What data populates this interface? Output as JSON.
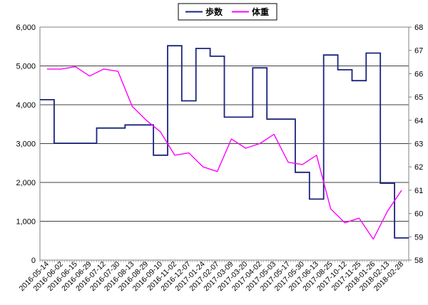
{
  "chart_data": {
    "type": "line",
    "x": [
      "2016-05-14",
      "2016-06-02",
      "2016-06-15",
      "2016-06-29",
      "2016-07-12",
      "2016-07-30",
      "2016-08-13",
      "2016-08-29",
      "2016-09-10",
      "2016-11-02",
      "2016-12-07",
      "2017-01-24",
      "2017-02-07",
      "2017-03-09",
      "2017-03-20",
      "2017-04-02",
      "2017-05-03",
      "2017-05-17",
      "2017-05-30",
      "2017-06-13",
      "2017-08-25",
      "2017-10-12",
      "2017-11-25",
      "2018-01-26",
      "2018-02-13",
      "2018-02-28"
    ],
    "x_tick_labels": [
      "2016-05-14",
      "2016-06-02",
      "2016-06-15",
      "2016-06-29",
      "2016-07-12",
      "2016-07-30",
      "2016-08-13",
      "2016-08-29",
      "2016-09-10",
      "2016-11-02",
      "2016-12-07",
      "2017-01-24",
      "2017-02-07",
      "2017-03-09",
      "2017-03-20",
      "2017-04-02",
      "2017-05-03",
      "2017-05-17",
      "2017-05-30",
      "2017-06-13",
      "2017-08-25",
      "2017-10-12",
      "2017-11-25",
      "2018-01-26",
      "2018-02-13",
      "2018-02-28"
    ],
    "y_left": {
      "ylim": [
        0,
        6000
      ],
      "ticks": [
        "0",
        "1,000",
        "2,000",
        "3,000",
        "4,000",
        "5,000",
        "6,000"
      ]
    },
    "y_right": {
      "ylim": [
        58,
        68
      ],
      "ticks": [
        "58",
        "59",
        "60",
        "61",
        "62",
        "63",
        "64",
        "65",
        "66",
        "67",
        "68"
      ]
    },
    "grid": "horizontal",
    "legend_position": "top-center",
    "series": [
      {
        "name": "歩数",
        "axis": "left",
        "color": "#1a237e",
        "values": [
          4130,
          3010,
          3010,
          3010,
          3400,
          3400,
          3480,
          3480,
          2700,
          5520,
          4100,
          5450,
          5250,
          3680,
          3680,
          4950,
          3630,
          3630,
          2260,
          1570,
          5280,
          4900,
          4620,
          5330,
          1980,
          570
        ]
      },
      {
        "name": "体重",
        "axis": "right",
        "color": "#ff00ff",
        "values": [
          66.2,
          66.2,
          66.3,
          65.9,
          66.2,
          66.1,
          64.6,
          64.0,
          63.5,
          62.5,
          62.6,
          62.0,
          61.8,
          63.2,
          62.8,
          63.0,
          63.4,
          62.2,
          62.1,
          62.5,
          60.2,
          59.6,
          59.8,
          58.9,
          60.1,
          61.0
        ]
      }
    ]
  }
}
